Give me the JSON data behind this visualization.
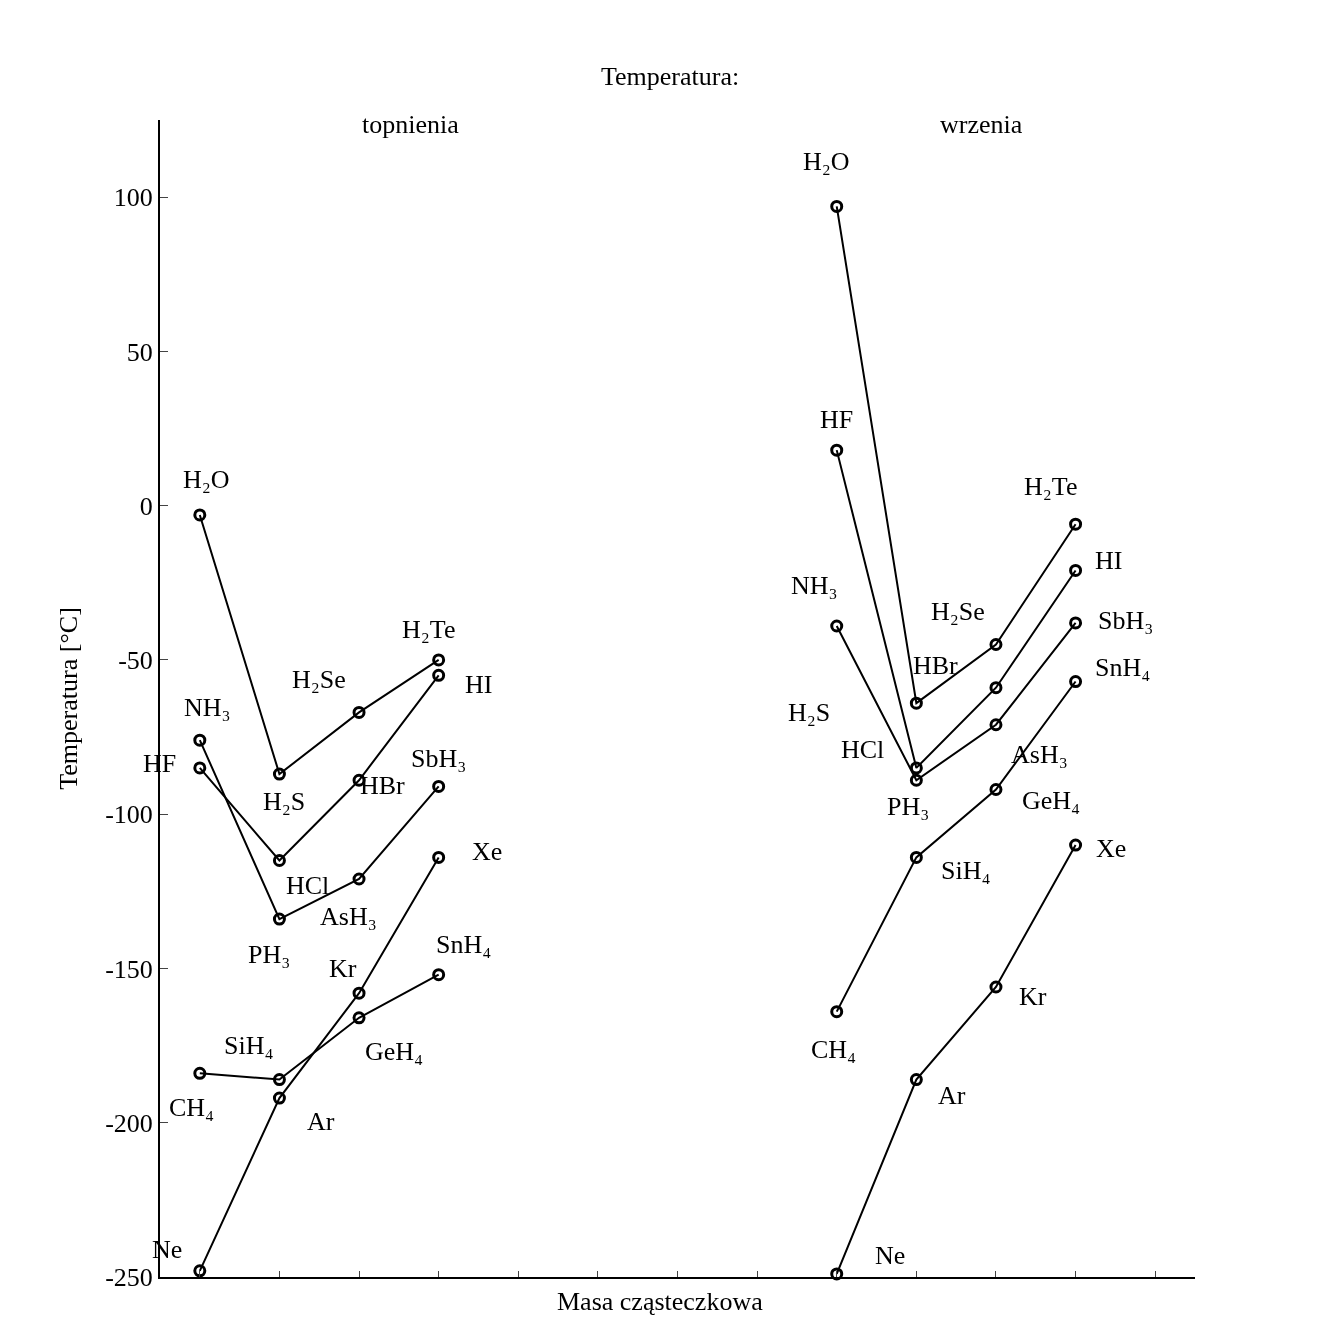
{
  "chart_data": {
    "type": "line",
    "title": "Temperatura:",
    "xlabel": "Masa cząsteczkowa",
    "ylabel": "Temperatura [°C]",
    "categories": [
      null,
      null,
      null,
      null,
      null,
      null,
      null,
      null,
      null,
      null,
      null,
      null,
      null
    ],
    "ylim": [
      -250,
      125
    ],
    "yticks": [
      -250,
      -200,
      -150,
      -100,
      -50,
      0,
      50,
      100
    ],
    "marker": "circle",
    "line_style": "solid",
    "series": [
      {
        "color": "#000000",
        "values": [
          -184,
          -186,
          -166,
          -152,
          null,
          null,
          null,
          null,
          null,
          null,
          null,
          null,
          null
        ]
      },
      {
        "color": "#000000",
        "values": [
          -76,
          -134,
          -121,
          -91,
          null,
          null,
          null,
          null,
          null,
          null,
          null,
          null,
          null
        ]
      },
      {
        "color": "#000000",
        "values": [
          -3,
          -87,
          -67,
          -50,
          null,
          null,
          null,
          null,
          null,
          null,
          null,
          null,
          null
        ]
      },
      {
        "color": "#000000",
        "values": [
          -85,
          -115,
          -89,
          -55,
          null,
          null,
          null,
          null,
          null,
          null,
          null,
          null,
          null
        ]
      },
      {
        "color": "#000000",
        "values": [
          -248,
          -192,
          -158,
          -114,
          null,
          null,
          null,
          null,
          null,
          null,
          null,
          null,
          null
        ]
      },
      {
        "color": "#000000",
        "values": [
          null,
          null,
          null,
          null,
          null,
          null,
          null,
          null,
          -164,
          -114,
          -92,
          -57,
          null
        ]
      },
      {
        "color": "#000000",
        "values": [
          null,
          null,
          null,
          null,
          null,
          null,
          null,
          null,
          -39,
          -89,
          -71,
          -38,
          null
        ]
      },
      {
        "color": "#000000",
        "values": [
          null,
          null,
          null,
          null,
          null,
          null,
          null,
          null,
          97,
          -64,
          -45,
          -6,
          null
        ]
      },
      {
        "color": "#000000",
        "values": [
          null,
          null,
          null,
          null,
          null,
          null,
          null,
          null,
          18,
          -85,
          -59,
          -21,
          null
        ]
      },
      {
        "color": "#000000",
        "values": [
          null,
          null,
          null,
          null,
          null,
          null,
          null,
          null,
          -249,
          -186,
          -156,
          -110,
          null
        ]
      }
    ],
    "annotations": [
      "topnienia",
      "wrzenia",
      "CH₄",
      "SiH₄",
      "GeH₄",
      "SnH₄",
      "NH₃",
      "PH₃",
      "AsH₃",
      "SbH₃",
      "H₂O",
      "H₂S",
      "H₂Se",
      "H₂Te",
      "HF",
      "HCl",
      "HBr",
      "HI",
      "Ne",
      "Ar",
      "Kr",
      "Xe",
      "CH₄",
      "SiH₄",
      "GeH₄",
      "SnH₄",
      "NH₃",
      "PH₃",
      "AsH₃",
      "SbH₃",
      "H₂O",
      "H₂S",
      "H₂Se",
      "H₂Te",
      "HF",
      "HCl",
      "HBr",
      "HI",
      "Ne",
      "Ar",
      "Kr",
      "Xe"
    ]
  }
}
